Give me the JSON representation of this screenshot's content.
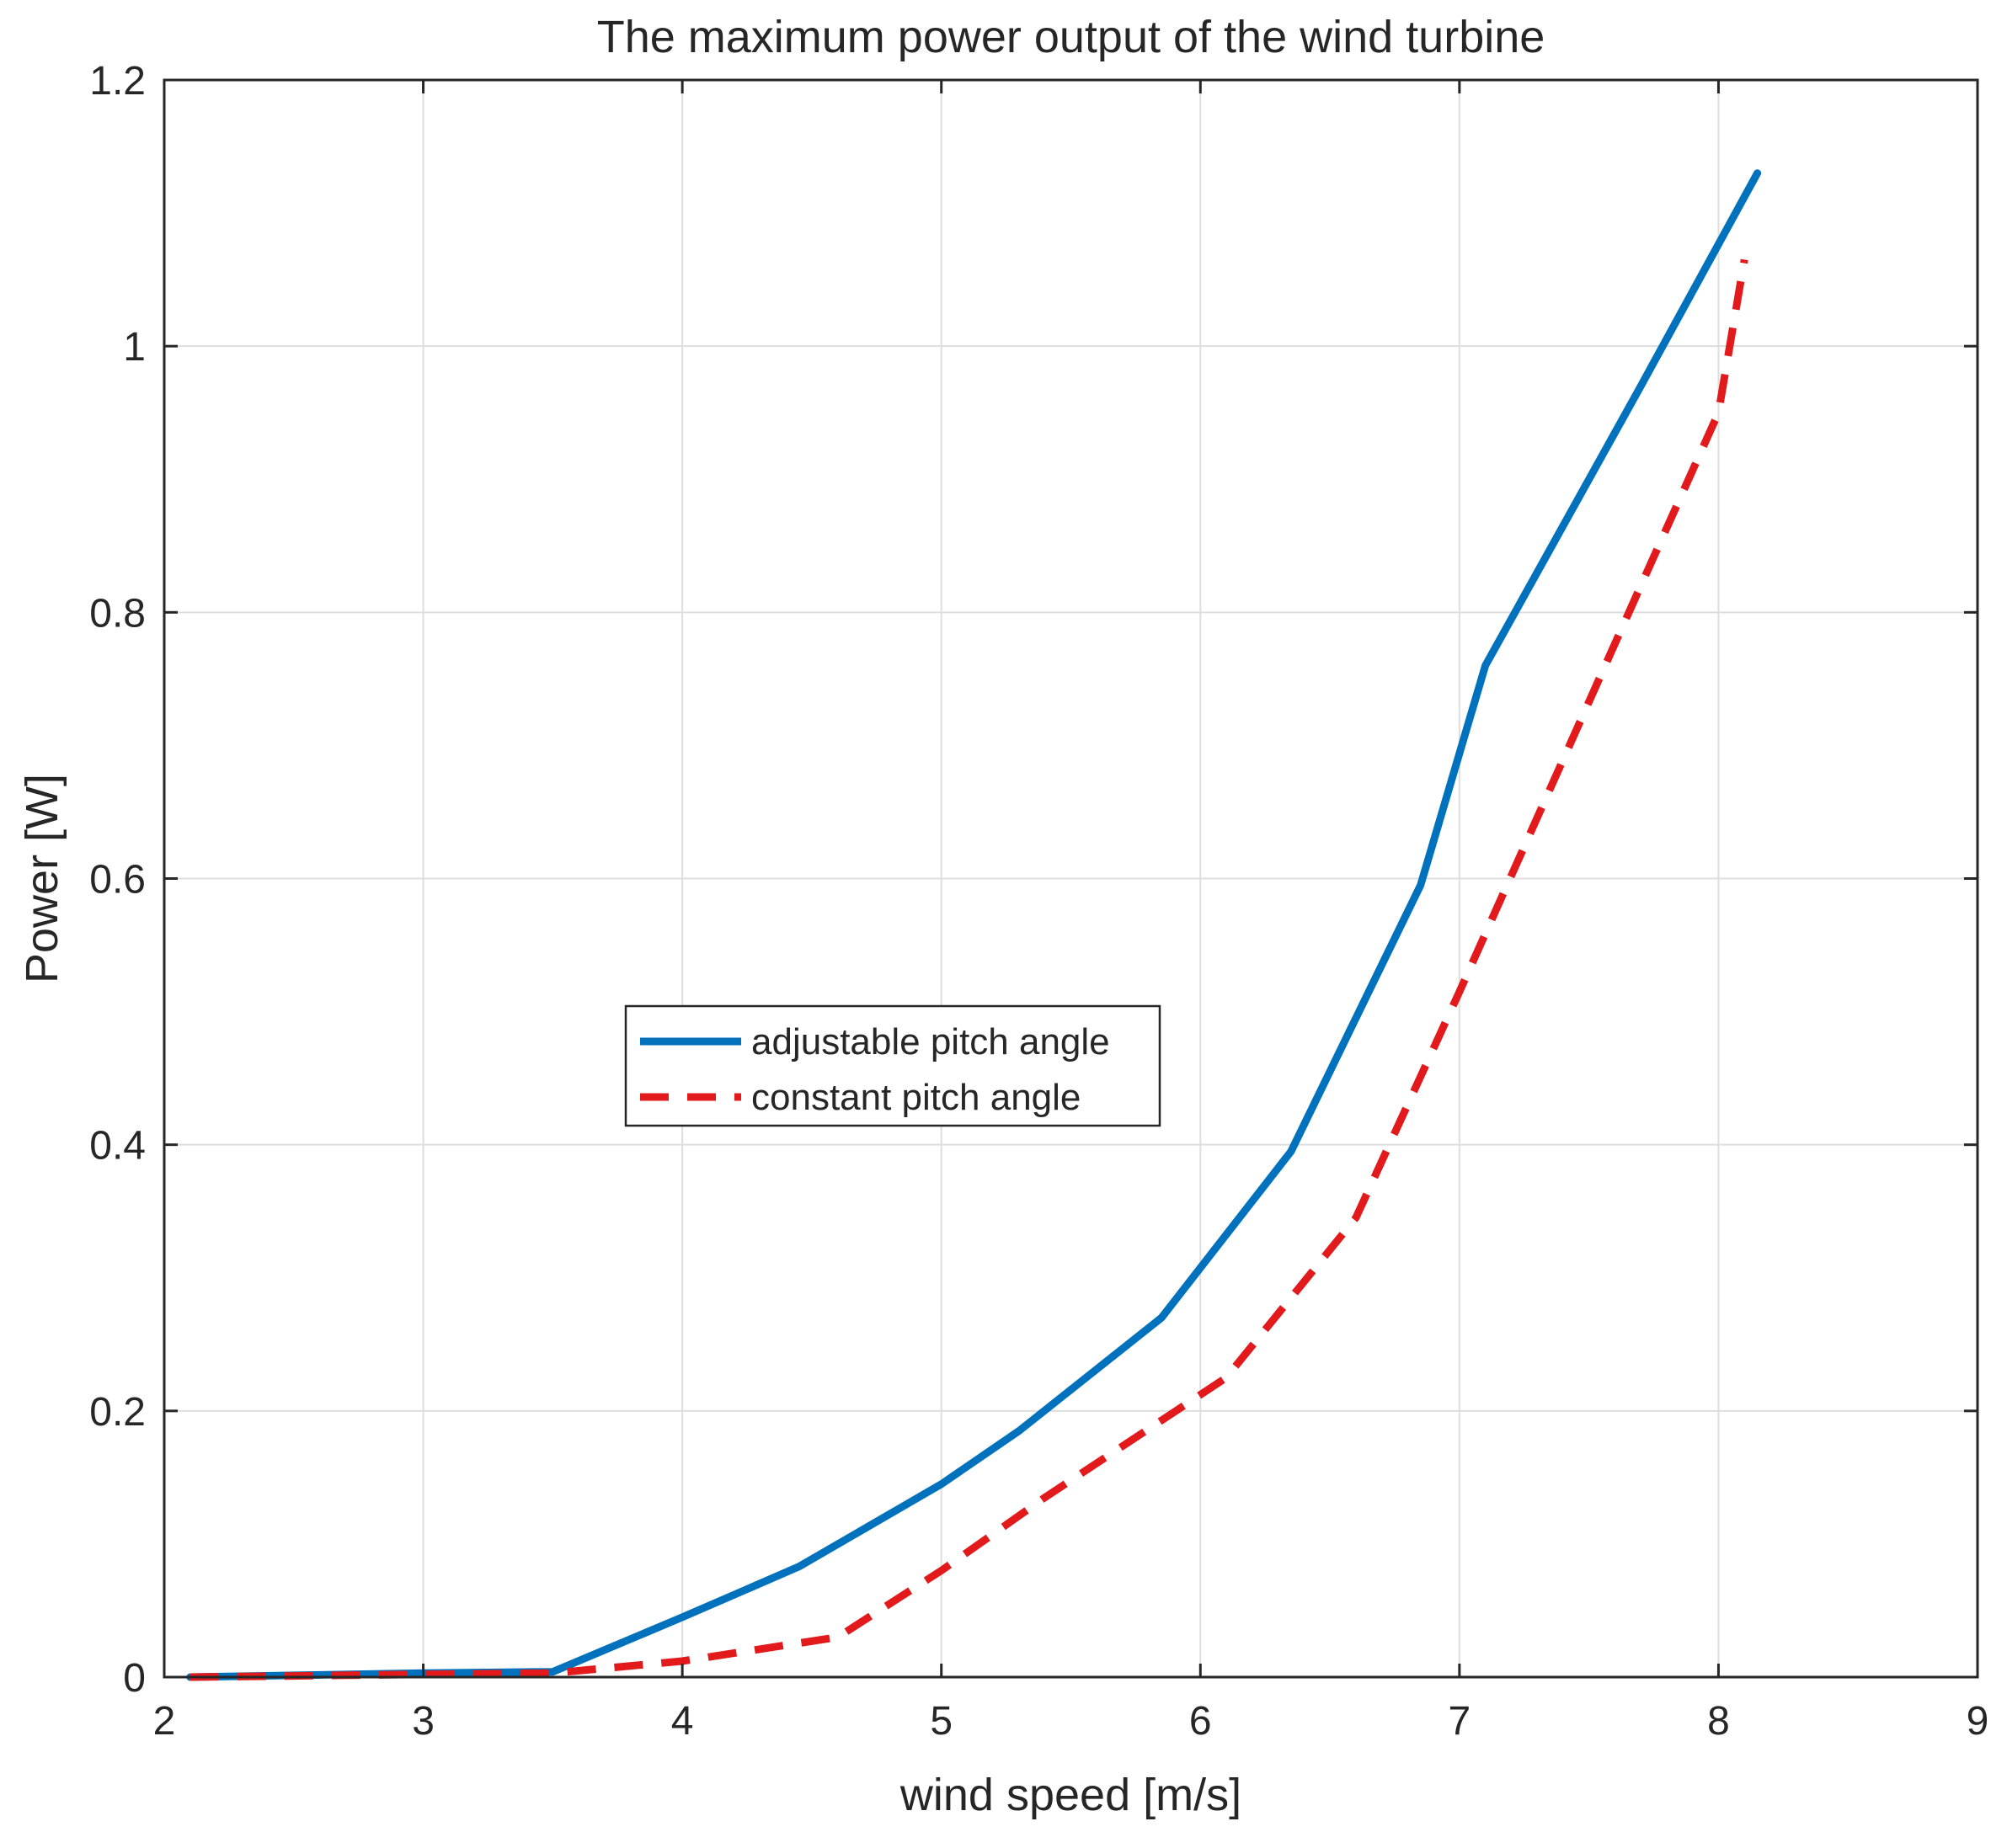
{
  "chart_data": {
    "type": "line",
    "title": "The maximum power output of the wind turbine",
    "xlabel": "wind speed [m/s]",
    "ylabel": "Power [W]",
    "xlim": [
      2,
      9
    ],
    "ylim": [
      0,
      1.2
    ],
    "xticks": [
      2,
      3,
      4,
      5,
      6,
      7,
      8,
      9
    ],
    "xtick_labels": [
      "2",
      "3",
      "4",
      "5",
      "6",
      "7",
      "8",
      "9"
    ],
    "yticks": [
      0,
      0.2,
      0.4,
      0.6,
      0.8,
      1.0,
      1.2
    ],
    "ytick_labels": [
      "0",
      "0.2",
      "0.4",
      "0.6",
      "0.8",
      "1",
      "1.2"
    ],
    "grid": true,
    "legend_position": "center-left",
    "series": [
      {
        "name": "adjustable pitch angle",
        "color": "#0072bd",
        "style": "solid",
        "x": [
          2.1,
          3.0,
          3.5,
          4.0,
          4.45,
          5.0,
          5.3,
          5.85,
          6.35,
          6.85,
          7.1,
          7.7,
          8.15
        ],
        "y": [
          0.0,
          0.003,
          0.004,
          0.045,
          0.083,
          0.145,
          0.185,
          0.27,
          0.395,
          0.595,
          0.76,
          0.97,
          1.13
        ]
      },
      {
        "name": "constant pitch angle",
        "color": "#e31a1c",
        "style": "dashed",
        "x": [
          2.1,
          3.0,
          3.5,
          4.0,
          4.6,
          5.0,
          5.4,
          6.1,
          6.6,
          7.0,
          7.7,
          8.0,
          8.1
        ],
        "y": [
          0.0,
          0.002,
          0.003,
          0.012,
          0.03,
          0.08,
          0.135,
          0.225,
          0.345,
          0.515,
          0.82,
          0.95,
          1.065
        ]
      }
    ]
  }
}
